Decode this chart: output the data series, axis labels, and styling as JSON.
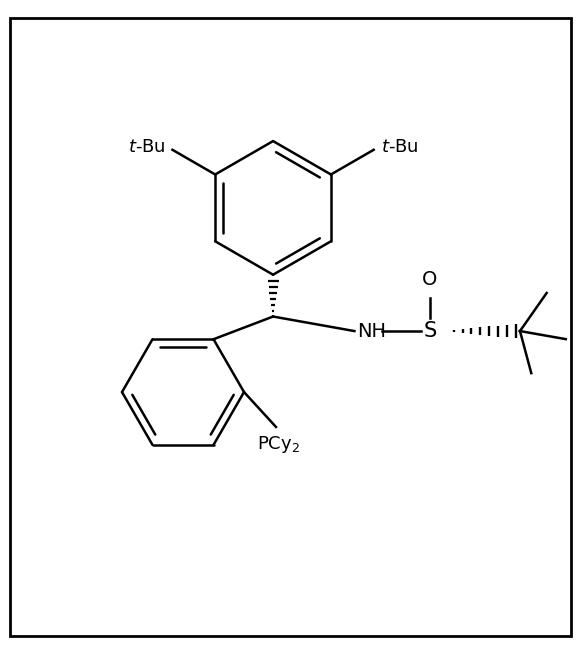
{
  "bg_color": "#ffffff",
  "line_color": "#000000",
  "line_width": 1.8,
  "font_size": 13,
  "fig_width": 5.81,
  "fig_height": 6.54,
  "border_color": "#000000",
  "border_linewidth": 2.0,
  "xlim": [
    0,
    10
  ],
  "ylim": [
    0,
    11
  ]
}
